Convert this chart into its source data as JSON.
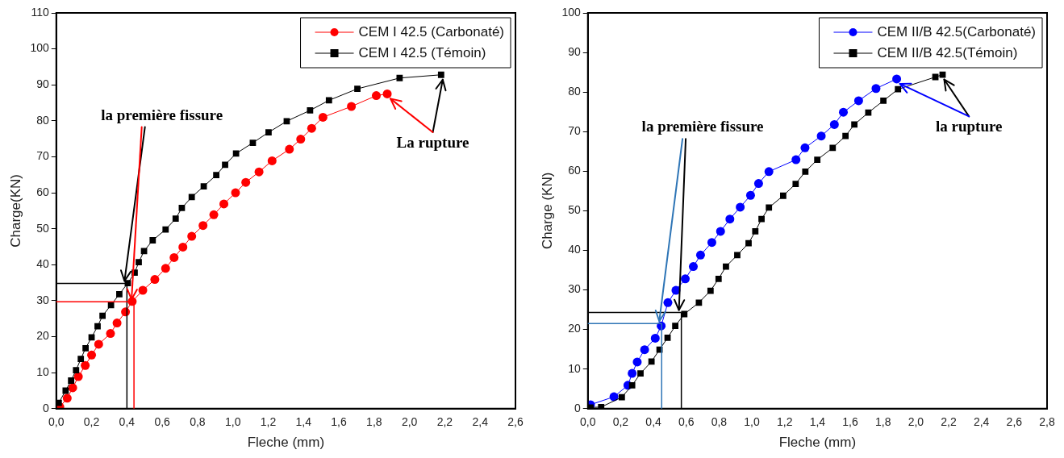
{
  "chart_data": [
    {
      "type": "line",
      "xlabel": "Fleche (mm)",
      "ylabel": "Charge(KN)",
      "legend": "top right",
      "grid": false,
      "line_style": "solid",
      "xlim": [
        0,
        2.6
      ],
      "xticks": [
        {
          "value": 0,
          "label": "0,0"
        },
        {
          "value": 0.2,
          "label": "0,2"
        },
        {
          "value": 0.4,
          "label": "0,4"
        },
        {
          "value": 0.6,
          "label": "0,6"
        },
        {
          "value": 0.8,
          "label": "0,8"
        },
        {
          "value": 1,
          "label": "1,0"
        },
        {
          "value": 1.2,
          "label": "1,2"
        },
        {
          "value": 1.4,
          "label": "1,4"
        },
        {
          "value": 1.6,
          "label": "1,6"
        },
        {
          "value": 1.8,
          "label": "1,8"
        },
        {
          "value": 2,
          "label": "2,0"
        },
        {
          "value": 2.2,
          "label": "2,2"
        },
        {
          "value": 2.4,
          "label": "2,4"
        },
        {
          "value": 2.6,
          "label": "2,6"
        }
      ],
      "ylim": [
        0,
        110
      ],
      "yticks": [
        0,
        10,
        20,
        30,
        40,
        50,
        60,
        70,
        80,
        90,
        100,
        110
      ],
      "series": [
        {
          "name": "CEM I 42.5 (Carbonaté)",
          "color": "#ff0000",
          "marker": "circle",
          "x": [
            0.02,
            0.062,
            0.093,
            0.125,
            0.164,
            0.2,
            0.24,
            0.307,
            0.344,
            0.392,
            0.43,
            0.49,
            0.558,
            0.619,
            0.667,
            0.717,
            0.767,
            0.831,
            0.892,
            0.949,
            1.015,
            1.073,
            1.148,
            1.222,
            1.32,
            1.384,
            1.446,
            1.51,
            1.671,
            1.812,
            1.874
          ],
          "values": [
            0.5,
            2.9,
            5.8,
            8.9,
            12,
            14.9,
            17.9,
            20.9,
            23.8,
            26.9,
            29.8,
            32.9,
            35.9,
            39,
            42,
            44.9,
            47.9,
            50.9,
            53.9,
            56.9,
            60,
            62.9,
            65.8,
            68.9,
            72.1,
            74.9,
            77.9,
            81,
            84,
            87,
            87.5
          ]
        },
        {
          "name": "CEM I 42.5 (Témoin)",
          "color": "#000000",
          "marker": "square",
          "x": [
            0.014,
            0.053,
            0.084,
            0.112,
            0.139,
            0.166,
            0.2,
            0.234,
            0.262,
            0.31,
            0.357,
            0.405,
            0.444,
            0.467,
            0.497,
            0.546,
            0.619,
            0.676,
            0.711,
            0.767,
            0.835,
            0.906,
            0.956,
            1.018,
            1.113,
            1.202,
            1.305,
            1.437,
            1.544,
            1.705,
            1.944,
            2.179
          ],
          "values": [
            1.6,
            5,
            7.8,
            10.7,
            13.8,
            16.8,
            19.8,
            22.9,
            25.8,
            28.8,
            31.8,
            34.9,
            37.8,
            40.7,
            43.8,
            46.8,
            49.8,
            52.8,
            55.8,
            58.8,
            61.8,
            64.9,
            67.8,
            70.9,
            73.9,
            76.8,
            79.9,
            82.9,
            85.7,
            88.9,
            91.9,
            92.8
          ]
        }
      ],
      "ref_lines": [
        {
          "axis": "y",
          "value": 34.8,
          "color": "#000000"
        },
        {
          "axis": "x",
          "value": 0.4,
          "color": "#000000"
        },
        {
          "axis": "y",
          "value": 29.7,
          "color": "#ff0000"
        },
        {
          "axis": "x",
          "value": 0.44,
          "color": "#ff0000"
        }
      ],
      "annotations": [
        {
          "text": "la première fissure",
          "x": 0.4,
          "y": 34.8
        },
        {
          "text": "La rupture",
          "x": 2.179,
          "y": 92.8
        }
      ]
    },
    {
      "type": "line",
      "xlabel": "Fleche (mm)",
      "ylabel": "Charge (KN)",
      "legend": "top right",
      "grid": false,
      "line_style": "solid",
      "xlim": [
        0,
        2.8
      ],
      "xticks": [
        {
          "value": 0,
          "label": "0,0"
        },
        {
          "value": 0.2,
          "label": "0,2"
        },
        {
          "value": 0.4,
          "label": "0,4"
        },
        {
          "value": 0.6,
          "label": "0,6"
        },
        {
          "value": 0.8,
          "label": "0,8"
        },
        {
          "value": 1,
          "label": "1,0"
        },
        {
          "value": 1.2,
          "label": "1,2"
        },
        {
          "value": 1.4,
          "label": "1,4"
        },
        {
          "value": 1.6,
          "label": "1,6"
        },
        {
          "value": 1.8,
          "label": "1,8"
        },
        {
          "value": 2,
          "label": "2,0"
        },
        {
          "value": 2.2,
          "label": "2,2"
        },
        {
          "value": 2.4,
          "label": "2,4"
        },
        {
          "value": 2.6,
          "label": "2,6"
        },
        {
          "value": 2.8,
          "label": "2,8"
        }
      ],
      "ylim": [
        0,
        100
      ],
      "yticks": [
        0,
        10,
        20,
        30,
        40,
        50,
        60,
        70,
        80,
        90,
        100
      ],
      "series": [
        {
          "name": "CEM II/B 42.5(Carbonaté)",
          "color": "#0000ff",
          "marker": "circle",
          "x": [
            0.016,
            0.159,
            0.244,
            0.27,
            0.301,
            0.346,
            0.411,
            0.447,
            0.488,
            0.537,
            0.594,
            0.643,
            0.687,
            0.756,
            0.809,
            0.866,
            0.929,
            0.992,
            1.041,
            1.104,
            1.269,
            1.324,
            1.423,
            1.503,
            1.558,
            1.651,
            1.757,
            1.883
          ],
          "values": [
            1,
            3,
            5.9,
            8.9,
            11.8,
            14.9,
            17.8,
            20.9,
            26.8,
            29.9,
            32.8,
            35.9,
            38.8,
            42,
            44.8,
            47.9,
            50.9,
            53.9,
            56.9,
            59.9,
            62.9,
            65.9,
            68.9,
            71.8,
            74.9,
            77.8,
            80.9,
            83.3
          ]
        },
        {
          "name": "CEM II/B 42.5(Témoin)",
          "color": "#000000",
          "marker": "square",
          "x": [
            0.016,
            0.081,
            0.207,
            0.27,
            0.321,
            0.388,
            0.437,
            0.486,
            0.533,
            0.588,
            0.677,
            0.748,
            0.797,
            0.842,
            0.911,
            0.98,
            1.021,
            1.059,
            1.104,
            1.191,
            1.267,
            1.326,
            1.399,
            1.493,
            1.571,
            1.625,
            1.71,
            1.802,
            1.891,
            2.119,
            2.163
          ],
          "values": [
            0.3,
            0.4,
            2.9,
            5.9,
            8.9,
            11.9,
            14.9,
            17.9,
            20.9,
            23.9,
            26.8,
            29.8,
            32.8,
            35.9,
            38.8,
            41.8,
            44.8,
            47.9,
            50.8,
            53.8,
            56.8,
            59.9,
            62.9,
            65.9,
            68.9,
            71.8,
            74.8,
            77.8,
            80.7,
            83.8,
            84.4
          ]
        }
      ],
      "ref_lines": [
        {
          "axis": "y",
          "value": 24.3,
          "color": "#000000"
        },
        {
          "axis": "x",
          "value": 0.57,
          "color": "#000000"
        },
        {
          "axis": "y",
          "value": 21.5,
          "color": "#2e75b6"
        },
        {
          "axis": "x",
          "value": 0.45,
          "color": "#2e75b6"
        }
      ],
      "annotations": [
        {
          "text": "la première fissure",
          "x": 0.57,
          "y": 24.3
        },
        {
          "text": "la rupture",
          "x": 2.163,
          "y": 84.4
        }
      ]
    }
  ]
}
